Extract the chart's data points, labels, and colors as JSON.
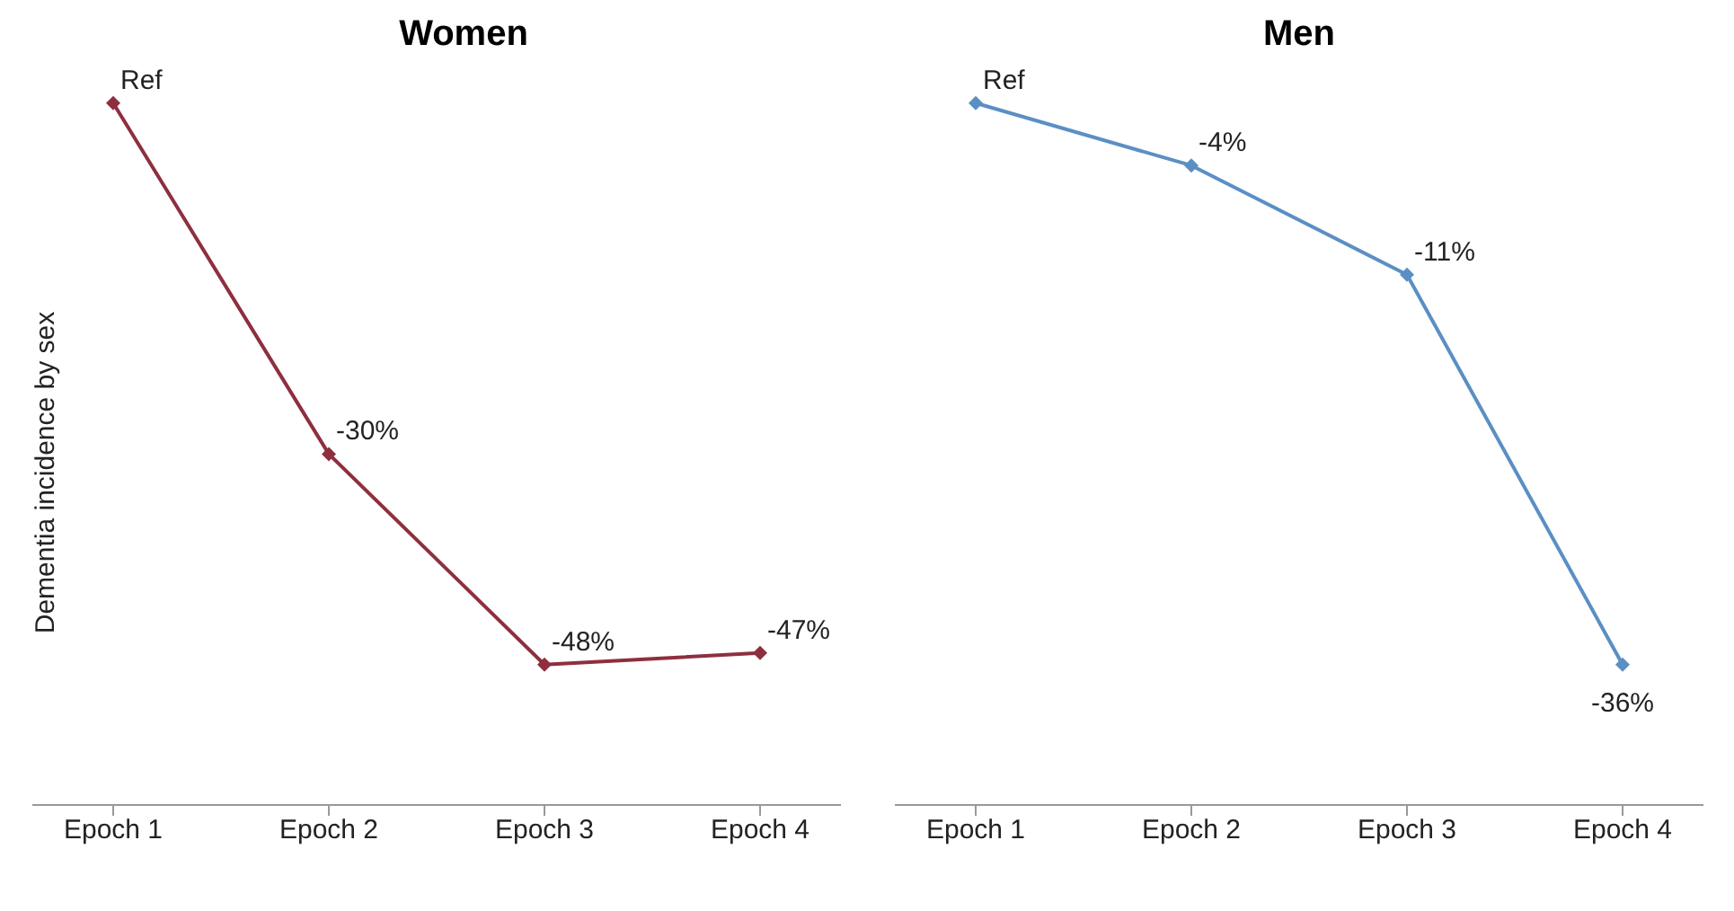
{
  "chart_data": [
    {
      "type": "line",
      "title": "Women",
      "ylabel": "Dementia incidence by sex",
      "tick_labels": "x",
      "categories": [
        "Epoch 1",
        "Epoch 2",
        "Epoch 3",
        "Epoch 4"
      ],
      "marker": "diamond",
      "grid": false,
      "legend": false,
      "series": [
        {
          "color": "#8e2f3f",
          "values": [
            0,
            -30,
            -48,
            -47
          ],
          "value_labels": [
            "Ref",
            "-30%",
            "-48%",
            "-47%"
          ]
        }
      ]
    },
    {
      "type": "line",
      "title": "Men",
      "tick_labels": "x",
      "categories": [
        "Epoch 1",
        "Epoch 2",
        "Epoch 3",
        "Epoch 4"
      ],
      "marker": "diamond",
      "grid": false,
      "legend": false,
      "series": [
        {
          "color": "#5b8fc4",
          "values": [
            0,
            -4,
            -11,
            -36
          ],
          "value_labels": [
            "Ref",
            "-4%",
            "-11%",
            "-36%"
          ]
        }
      ]
    }
  ]
}
